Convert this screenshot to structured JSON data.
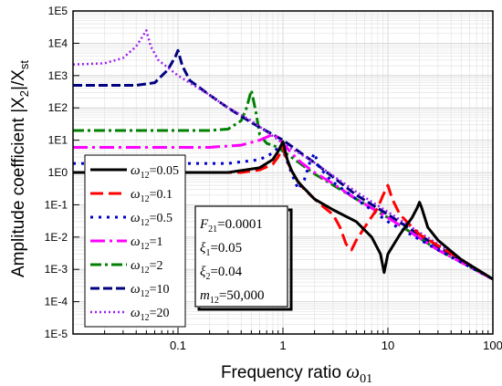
{
  "chart_data": {
    "type": "line",
    "xscale": "log",
    "yscale": "log",
    "xlim": [
      0.01,
      100
    ],
    "ylim": [
      1e-05,
      100000.0
    ],
    "grid": true,
    "minor_grid": true,
    "legend_position": "lower-left",
    "xlabel_text": "Frequency ratio ",
    "xlabel_symbol": "ω",
    "xlabel_sub": "01",
    "ylabel_text": "Amplitude coefficient |X",
    "ylabel_sub1": "2",
    "ylabel_mid": "|/X",
    "ylabel_sub2": "st",
    "x_ticks": [
      {
        "value": 0.1,
        "label": "0.1"
      },
      {
        "value": 1,
        "label": "1"
      },
      {
        "value": 10,
        "label": "10"
      },
      {
        "value": 100,
        "label": "100"
      }
    ],
    "y_ticks": [
      {
        "value": 100000,
        "label": "1E5"
      },
      {
        "value": 10000,
        "label": "1E4"
      },
      {
        "value": 1000,
        "label": "1E3"
      },
      {
        "value": 100,
        "label": "1E2"
      },
      {
        "value": 10,
        "label": "1E1"
      },
      {
        "value": 1,
        "label": "1E0"
      },
      {
        "value": 0.1,
        "label": "1E-1"
      },
      {
        "value": 0.01,
        "label": "1E-2"
      },
      {
        "value": 0.001,
        "label": "1E-3"
      },
      {
        "value": 0.0001,
        "label": "1E-4"
      },
      {
        "value": 1e-05,
        "label": "1E-5"
      }
    ],
    "series": [
      {
        "symbol": "ω",
        "sub": "12",
        "value": "=0.05",
        "color": "#000000",
        "dash": "",
        "width": 3,
        "points": [
          [
            0.01,
            1.0
          ],
          [
            0.3,
            1.0
          ],
          [
            0.6,
            1.4
          ],
          [
            0.8,
            2.5
          ],
          [
            0.9,
            4.5
          ],
          [
            1.0,
            9.0
          ],
          [
            1.1,
            2.5
          ],
          [
            1.2,
            1.2
          ],
          [
            1.4,
            0.5
          ],
          [
            2,
            0.15
          ],
          [
            3,
            0.07
          ],
          [
            5,
            0.03
          ],
          [
            7,
            0.01
          ],
          [
            8.5,
            0.003
          ],
          [
            9.2,
            0.0008
          ],
          [
            10,
            0.003
          ],
          [
            13,
            0.012
          ],
          [
            17,
            0.04
          ],
          [
            19,
            0.08
          ],
          [
            20,
            0.12
          ],
          [
            21,
            0.08
          ],
          [
            24,
            0.02
          ],
          [
            30,
            0.008
          ],
          [
            50,
            0.002
          ],
          [
            100,
            0.0005
          ]
        ]
      },
      {
        "symbol": "ω",
        "sub": "12",
        "value": "=0.1",
        "color": "#ff0000",
        "dash": "14,6",
        "width": 3,
        "points": [
          [
            0.01,
            1.0
          ],
          [
            0.4,
            1.0
          ],
          [
            0.6,
            1.2
          ],
          [
            0.8,
            1.8
          ],
          [
            0.9,
            3
          ],
          [
            1.0,
            6
          ],
          [
            1.1,
            2.2
          ],
          [
            1.3,
            0.7
          ],
          [
            1.6,
            0.3
          ],
          [
            2,
            0.15
          ],
          [
            2.5,
            0.08
          ],
          [
            3,
            0.05
          ],
          [
            3.5,
            0.02
          ],
          [
            4,
            0.006
          ],
          [
            4.5,
            0.004
          ],
          [
            5,
            0.008
          ],
          [
            6,
            0.02
          ],
          [
            8,
            0.08
          ],
          [
            9,
            0.2
          ],
          [
            10,
            0.4
          ],
          [
            11,
            0.15
          ],
          [
            13,
            0.05
          ],
          [
            20,
            0.012
          ],
          [
            50,
            0.002
          ],
          [
            100,
            0.0005
          ]
        ]
      },
      {
        "symbol": "ω",
        "sub": "12",
        "value": "=0.5",
        "color": "#0000cc",
        "dash": "3,6",
        "width": 3,
        "points": [
          [
            0.01,
            1.9
          ],
          [
            0.3,
            1.9
          ],
          [
            0.6,
            2.5
          ],
          [
            0.8,
            4
          ],
          [
            0.95,
            7
          ],
          [
            1.0,
            5
          ],
          [
            1.2,
            1
          ],
          [
            1.4,
            0.3
          ],
          [
            1.6,
            0.6
          ],
          [
            1.8,
            2
          ],
          [
            2,
            4
          ],
          [
            2.2,
            1.5
          ],
          [
            2.6,
            0.8
          ],
          [
            3,
            0.5
          ],
          [
            5,
            0.15
          ],
          [
            10,
            0.03
          ],
          [
            30,
            0.004
          ],
          [
            100,
            0.0005
          ]
        ]
      },
      {
        "symbol": "ω",
        "sub": "12",
        "value": "=1",
        "color": "#ff00ff",
        "dash": "16,5,3,5",
        "width": 3,
        "points": [
          [
            0.01,
            6
          ],
          [
            0.2,
            6
          ],
          [
            0.4,
            7
          ],
          [
            0.6,
            10
          ],
          [
            0.8,
            15
          ],
          [
            0.9,
            12
          ],
          [
            1.0,
            8
          ],
          [
            1.2,
            4
          ],
          [
            1.5,
            2
          ],
          [
            2,
            1
          ],
          [
            3,
            0.45
          ],
          [
            5,
            0.15
          ],
          [
            10,
            0.04
          ],
          [
            30,
            0.004
          ],
          [
            100,
            0.0005
          ]
        ]
      },
      {
        "symbol": "ω",
        "sub": "12",
        "value": "=2",
        "color": "#008000",
        "dash": "12,4,3,4",
        "width": 3,
        "points": [
          [
            0.01,
            20
          ],
          [
            0.2,
            20
          ],
          [
            0.3,
            22
          ],
          [
            0.4,
            40
          ],
          [
            0.45,
            100
          ],
          [
            0.5,
            350
          ],
          [
            0.55,
            80
          ],
          [
            0.6,
            15
          ],
          [
            0.7,
            8
          ],
          [
            0.9,
            6
          ],
          [
            1.0,
            4.5
          ],
          [
            1.2,
            3
          ],
          [
            2,
            0.9
          ],
          [
            5,
            0.15
          ],
          [
            10,
            0.04
          ],
          [
            30,
            0.004
          ],
          [
            100,
            0.0005
          ]
        ]
      },
      {
        "symbol": "ω",
        "sub": "12",
        "value": "=10",
        "color": "#000080",
        "dash": "10,4",
        "width": 3,
        "points": [
          [
            0.01,
            500
          ],
          [
            0.04,
            500
          ],
          [
            0.06,
            600
          ],
          [
            0.08,
            1500
          ],
          [
            0.095,
            4000
          ],
          [
            0.1,
            6000
          ],
          [
            0.11,
            2000
          ],
          [
            0.13,
            700
          ],
          [
            0.2,
            250
          ],
          [
            0.3,
            100
          ],
          [
            0.5,
            35
          ],
          [
            0.8,
            15
          ],
          [
            1,
            10
          ],
          [
            2,
            2
          ],
          [
            5,
            0.2
          ],
          [
            10,
            0.05
          ],
          [
            30,
            0.005
          ],
          [
            100,
            0.0005
          ]
        ]
      },
      {
        "symbol": "ω",
        "sub": "12",
        "value": "=20",
        "color": "#a020f0",
        "dash": "2,3",
        "width": 2.5,
        "points": [
          [
            0.01,
            2200
          ],
          [
            0.02,
            2400
          ],
          [
            0.03,
            3500
          ],
          [
            0.04,
            8000
          ],
          [
            0.05,
            25000
          ],
          [
            0.055,
            8000
          ],
          [
            0.065,
            3000
          ],
          [
            0.1,
            1000
          ],
          [
            0.2,
            250
          ],
          [
            0.3,
            100
          ],
          [
            0.5,
            40
          ],
          [
            1,
            8
          ],
          [
            2,
            2
          ],
          [
            5,
            0.25
          ],
          [
            10,
            0.06
          ],
          [
            30,
            0.006
          ],
          [
            100,
            0.0005
          ]
        ]
      }
    ],
    "annotations": [
      {
        "symbol": "F",
        "sub": "21",
        "value": "=0.0001"
      },
      {
        "symbol": "ξ",
        "sub": "1",
        "value": "=0.05"
      },
      {
        "symbol": "ξ",
        "sub": "2",
        "value": "=0.04"
      },
      {
        "symbol": "m",
        "sub": "12",
        "value": "=50,000"
      }
    ]
  }
}
